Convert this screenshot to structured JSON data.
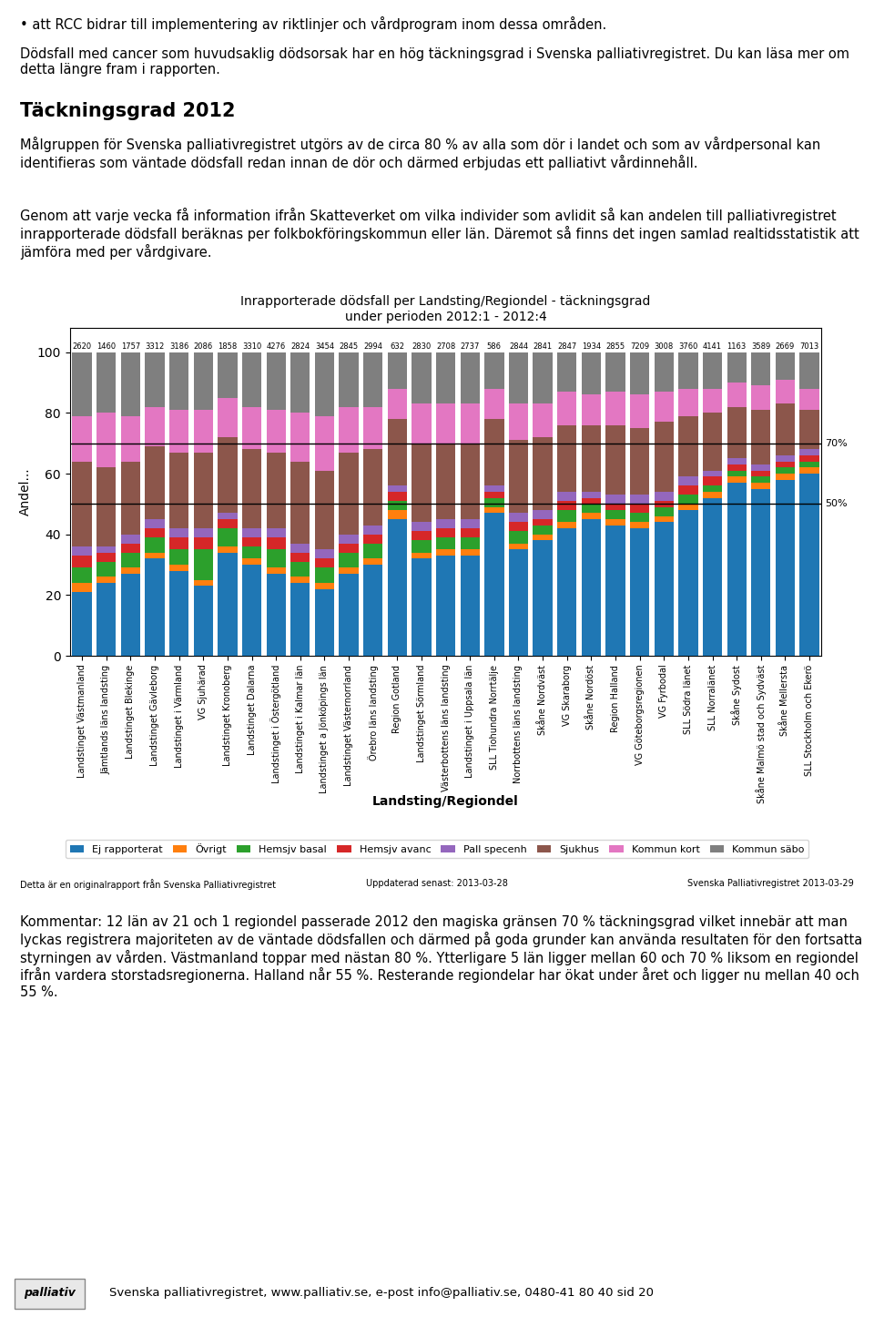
{
  "chart_data": {
    "type": "bar",
    "stacked": true,
    "title": "Inrapporterade dödsfall per Landsting/Regiondel - täckningsgrad\nunder perioden 2012:1 - 2012:4",
    "x_label": "Landsting/Regiondel",
    "y_label": "Andel...",
    "categories": [
      "Landstinget Västmanland",
      "Jämtlands läns landsting",
      "Landstinget Blekinge",
      "Landstinget Gävleborg",
      "Landstinget i Värmland",
      "VG Sjuhärad",
      "Landstinget Kronoberg",
      "Landstinget Dalarna",
      "Landstinget i Östergötland",
      "Landstinget i Kalmar län",
      "Landstinget a Jönköpings län",
      "Landstinget Västernorrland",
      "Örebro läns landsting",
      "Region Gotland",
      "Landstinget Sörmland",
      "Västerbottens läns landsting",
      "Landstinget i Uppsala län",
      "SLL Tiohundra Norrtälje",
      "Norrbottens läns landsting",
      "Skåne Nordväst",
      "VG Skaraborg",
      "Skåne Nordöst",
      "Region Halland",
      "VG Göteborgsregionen",
      "VG Fyrbodal",
      "SLL Södra länet",
      "SLL Norralänet",
      "Skåne Sydost",
      "Skåne Malmö stad och Sydväst",
      "Skåne Mellersta",
      "SLL Stockholm och Ekerö"
    ],
    "series": [
      {
        "name": "Ej rapporterat",
        "values": [
          21,
          24,
          27,
          32,
          28,
          23,
          34,
          30,
          27,
          24,
          22,
          27,
          30,
          45,
          32,
          33,
          33,
          47,
          35,
          38,
          42,
          45,
          43,
          42,
          44,
          48,
          52,
          57,
          55,
          58,
          60
        ]
      },
      {
        "name": "Övrigt",
        "values": [
          3,
          2,
          2,
          2,
          2,
          2,
          2,
          2,
          2,
          2,
          2,
          2,
          2,
          3,
          2,
          2,
          2,
          2,
          2,
          2,
          2,
          2,
          2,
          2,
          2,
          2,
          2,
          2,
          2,
          2,
          2
        ]
      },
      {
        "name": "Hemsjv basal",
        "values": [
          5,
          5,
          5,
          5,
          5,
          10,
          6,
          4,
          6,
          5,
          5,
          5,
          5,
          3,
          4,
          4,
          4,
          3,
          4,
          3,
          4,
          3,
          3,
          3,
          3,
          3,
          2,
          2,
          2,
          2,
          2
        ]
      },
      {
        "name": "Hemsjv avanc",
        "values": [
          4,
          3,
          3,
          3,
          4,
          4,
          3,
          3,
          4,
          3,
          3,
          3,
          3,
          3,
          3,
          3,
          3,
          2,
          3,
          2,
          3,
          2,
          2,
          3,
          2,
          3,
          3,
          2,
          2,
          2,
          2
        ]
      },
      {
        "name": "Pall specenh",
        "values": [
          3,
          2,
          3,
          3,
          3,
          3,
          2,
          3,
          3,
          3,
          3,
          3,
          3,
          2,
          3,
          3,
          3,
          2,
          3,
          3,
          3,
          2,
          3,
          3,
          3,
          3,
          2,
          2,
          2,
          2,
          2
        ]
      },
      {
        "name": "Sjukhus",
        "values": [
          28,
          26,
          24,
          24,
          25,
          25,
          25,
          26,
          25,
          27,
          26,
          27,
          25,
          22,
          26,
          25,
          25,
          22,
          24,
          24,
          22,
          22,
          23,
          22,
          23,
          20,
          19,
          17,
          18,
          17,
          13
        ]
      },
      {
        "name": "Kommun kort",
        "values": [
          15,
          18,
          15,
          13,
          14,
          14,
          13,
          14,
          14,
          16,
          18,
          15,
          14,
          10,
          13,
          13,
          13,
          10,
          12,
          11,
          11,
          10,
          11,
          11,
          10,
          9,
          8,
          8,
          8,
          8,
          7
        ]
      },
      {
        "name": "Kommun säbo",
        "values": [
          21,
          20,
          21,
          18,
          19,
          19,
          15,
          18,
          19,
          20,
          21,
          18,
          18,
          12,
          17,
          17,
          17,
          12,
          17,
          17,
          13,
          14,
          13,
          14,
          13,
          12,
          12,
          10,
          11,
          9,
          12
        ]
      }
    ],
    "totals": [
      2620,
      1460,
      1757,
      3312,
      3186,
      2086,
      1858,
      3310,
      4276,
      2824,
      3454,
      2845,
      2994,
      632,
      2830,
      2708,
      2737,
      586,
      2844,
      2841,
      2847,
      1934,
      2855,
      7209,
      3008,
      3760,
      4141,
      1163,
      3589,
      2669,
      7013
    ],
    "reference_lines": [
      {
        "value": 70,
        "label": "70%"
      },
      {
        "value": 50,
        "label": "50%"
      }
    ],
    "ylim": [
      0,
      108
    ],
    "yticks": [
      0,
      20,
      40,
      60,
      80,
      100
    ],
    "legend": "lower center",
    "annotations": [
      "• att RCC bidrar till implementering av riktlinjer och vårdprogram inom dessa områden.",
      "Dödsfall med cancer som huvudsaklig dödsorsak har en hög täckningsgrad i Svenska palliativregistret. Du kan läsa mer om detta längre fram i rapporten.",
      "Täckningsgrad 2012",
      "Målgruppen för Svenska palliativregistret utgörs av de circa 80 % av alla som dör i landet och som av vårdpersonal kan identifieras som väntade dödsfall redan innan de dör och därmed erbjudas ett palliativt vårdinnehåll.",
      "Genom att varje vecka få information ifrån Skatteverket om vilka individer som avlidit så kan andelen till palliativregistret inrapporterade dödsfall beräknas per folkbokföringskommun eller län. Däremot så finns det ingen samlad realtidsstatistik att jämföra med per vårdgivare.",
      "Detta är en originalrapport från Svenska Palliativregistret",
      "Uppdaterad senast: 2013-03-28",
      "Svenska Palliativregistret 2013-03-29",
      "Kommentar: 12 län av 21 och 1 regiondel passerade 2012 den magiska gränsen 70 % täckningsgrad vilket innebär att man lyckas registrera majoriteten av de väntade dödsfallen och därmed på goda grunder kan använda resultaten för den fortsatta styrningen av vården. Västmanland toppar med nästan 80 %. Ytterligare 5 län ligger mellan 60 och 70 % liksom en regiondel ifrån vardera storstadsregionerna. Halland når 55 %. Resterande regiondelar har ökat under året och ligger nu mellan 40 och 55 %.",
      "palliativ",
      "Svenska palliativregistret, www.palliativ.se, e-post info@palliativ.se, 0480-41 80 40 sid 20"
    ]
  }
}
